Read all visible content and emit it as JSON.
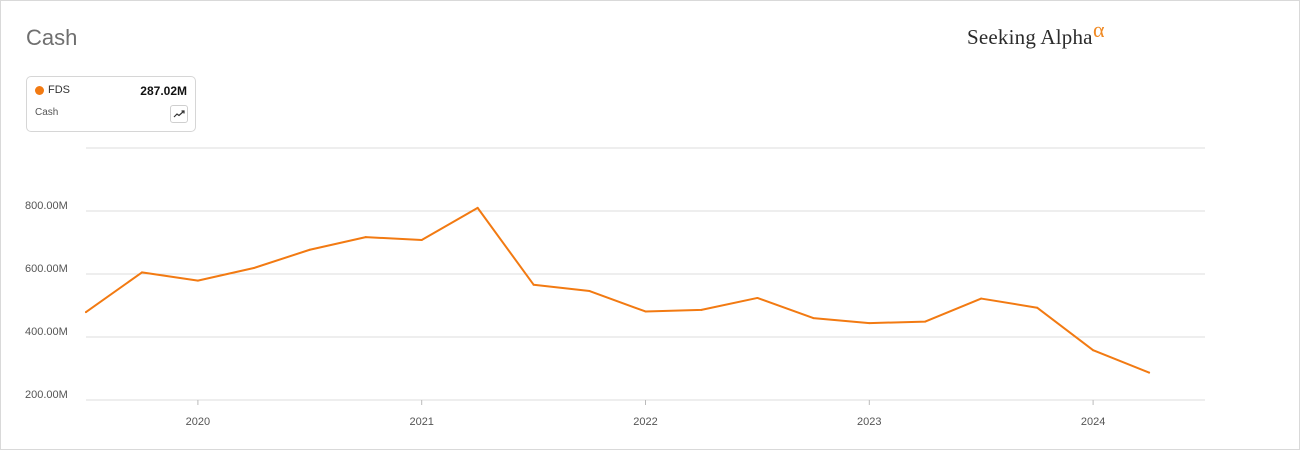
{
  "header": {
    "title": "Cash",
    "brand_text": "Seeking Alpha",
    "brand_mark": "α"
  },
  "legend": {
    "ticker": "FDS",
    "value": "287.02M",
    "metric": "Cash",
    "trend_icon": "trend-line-icon"
  },
  "colors": {
    "series": "#f27a12",
    "brand_accent": "#f08a24",
    "grid": "#dddddd"
  },
  "chart_data": {
    "type": "line",
    "title": "Cash",
    "xlabel": "",
    "ylabel": "",
    "y_tick_labels": [
      "200.00M",
      "400.00M",
      "600.00M",
      "800.00M"
    ],
    "y_ticks": [
      200,
      400,
      600,
      800
    ],
    "ylim": [
      200,
      1000
    ],
    "y_units": "millions",
    "x_tick_labels": [
      "2020",
      "2021",
      "2022",
      "2023",
      "2024"
    ],
    "x_ticks": [
      2020,
      2021,
      2022,
      2023,
      2024
    ],
    "xlim": [
      2019.5,
      2024.5
    ],
    "grid": true,
    "legend_position": "top-left",
    "series": [
      {
        "name": "FDS",
        "x": [
          2019.5,
          2019.75,
          2020.0,
          2020.25,
          2020.5,
          2020.75,
          2021.0,
          2021.25,
          2021.5,
          2021.75,
          2022.0,
          2022.25,
          2022.5,
          2022.75,
          2023.0,
          2023.25,
          2023.5,
          2023.75,
          2024.0,
          2024.25
        ],
        "values": [
          479,
          605,
          579,
          619,
          677,
          717,
          708,
          810,
          566,
          546,
          481,
          486,
          524,
          460,
          444,
          449,
          522,
          493,
          358,
          287.02
        ]
      }
    ]
  }
}
